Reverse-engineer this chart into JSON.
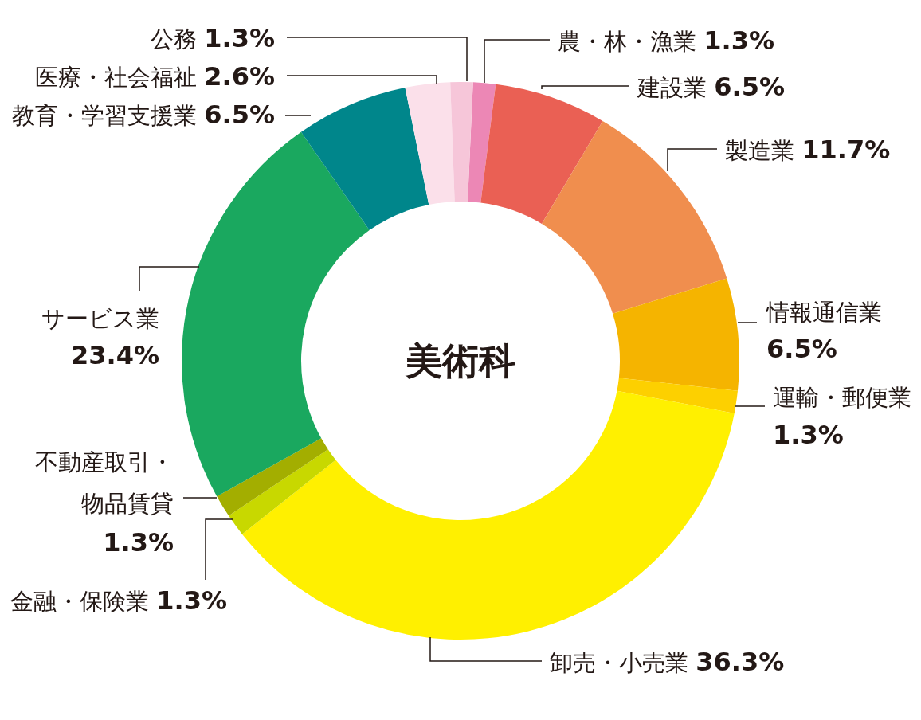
{
  "chart_data": {
    "type": "donut",
    "title": "美術科",
    "categories": [
      "農・林・漁業",
      "建設業",
      "製造業",
      "情報通信業",
      "運輸・郵便業",
      "卸売・小売業",
      "金融・保険業",
      "不動産取引・物品賃貸",
      "サービス業",
      "教育・学習支援業",
      "医療・社会福祉",
      "公務"
    ],
    "values": [
      1.3,
      6.5,
      11.7,
      6.5,
      1.3,
      36.3,
      1.3,
      1.3,
      23.4,
      6.5,
      2.6,
      1.3
    ],
    "colors": [
      "#ec87b5",
      "#ea6054",
      "#f08e4e",
      "#f5b400",
      "#fdd000",
      "#fff000",
      "#c8d800",
      "#a3ae00",
      "#1aa85f",
      "#00868b",
      "#fbe0ea",
      "#f6c6d9"
    ],
    "value_labels": [
      "1.3%",
      "6.5%",
      "11.7%",
      "6.5%",
      "1.3%",
      "36.3%",
      "1.3%",
      "1.3%",
      "23.4%",
      "6.5%",
      "2.6%",
      "1.3%"
    ]
  }
}
